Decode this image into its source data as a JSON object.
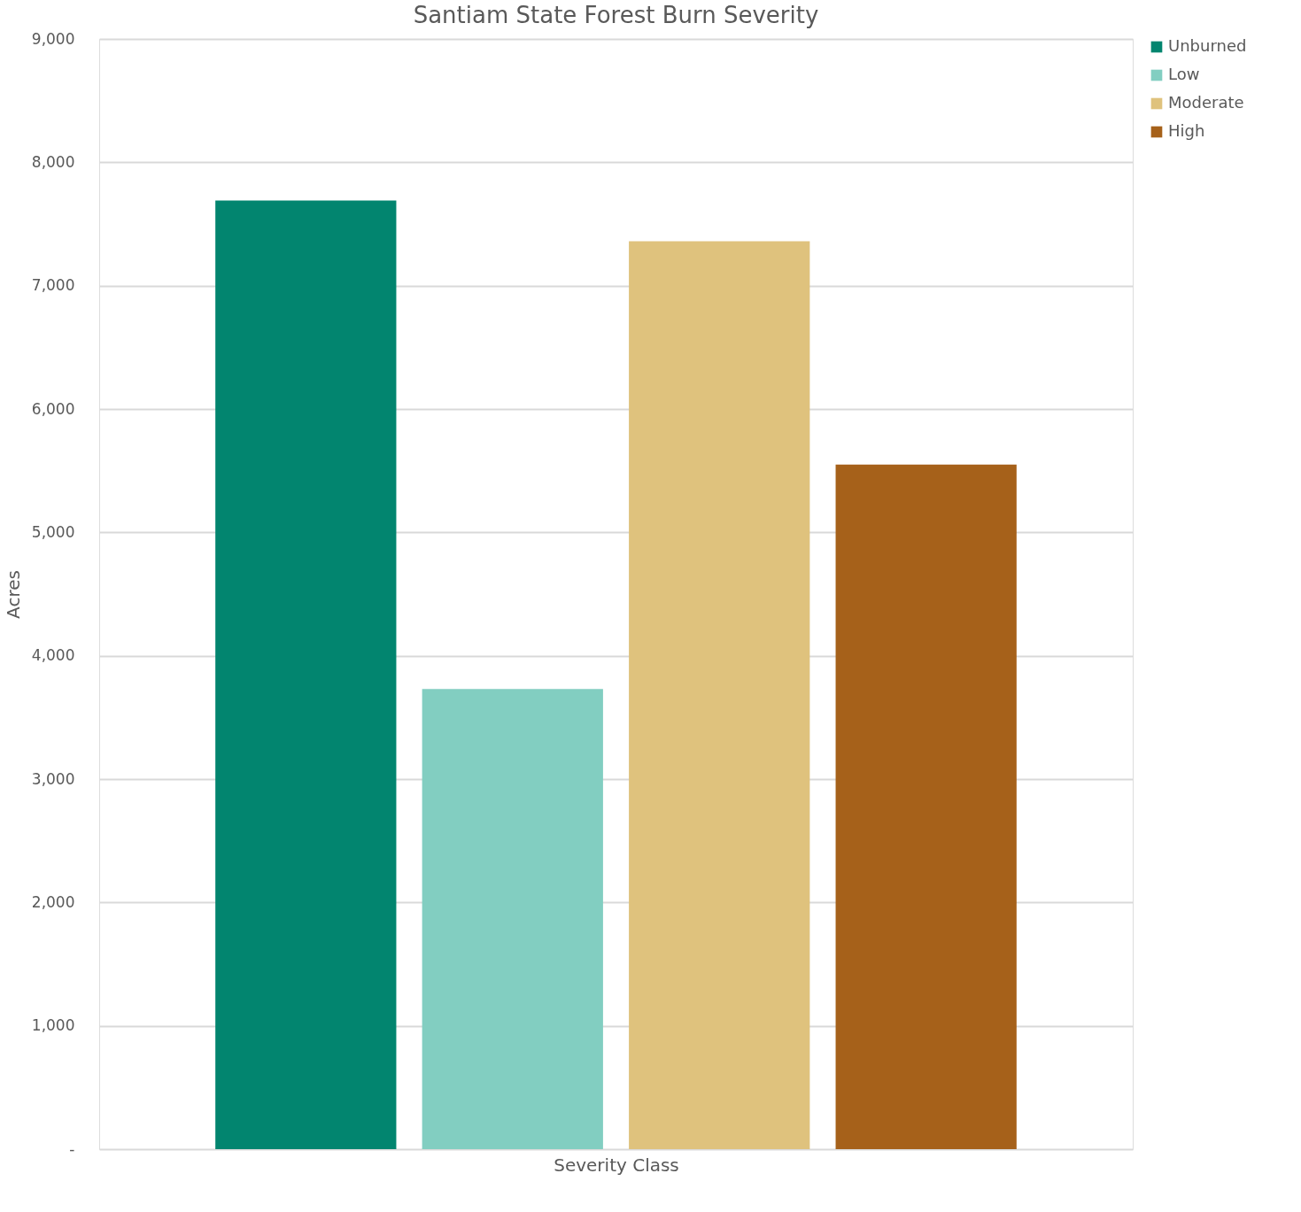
{
  "chart_data": {
    "type": "bar",
    "title": "Santiam State Forest Burn Severity",
    "xlabel": "Severity Class",
    "ylabel": "Acres",
    "categories": [
      null
    ],
    "series": [
      {
        "name": "Unburned",
        "color": "#02856f",
        "values": [
          7690
        ]
      },
      {
        "name": "Low",
        "color": "#82cec1",
        "values": [
          3730
        ]
      },
      {
        "name": "Moderate",
        "color": "#dfc27d",
        "values": [
          7360
        ]
      },
      {
        "name": "High",
        "color": "#a6611a",
        "values": [
          5550
        ]
      }
    ],
    "ylim": [
      0,
      9000
    ],
    "yticks": [
      {
        "value": 0,
        "label": "-"
      },
      {
        "value": 1000,
        "label": "1,000"
      },
      {
        "value": 2000,
        "label": "2,000"
      },
      {
        "value": 3000,
        "label": "3,000"
      },
      {
        "value": 4000,
        "label": "4,000"
      },
      {
        "value": 5000,
        "label": "5,000"
      },
      {
        "value": 6000,
        "label": "6,000"
      },
      {
        "value": 7000,
        "label": "7,000"
      },
      {
        "value": 8000,
        "label": "8,000"
      },
      {
        "value": 9000,
        "label": "9,000"
      }
    ],
    "grid": "y",
    "legend": "right"
  }
}
